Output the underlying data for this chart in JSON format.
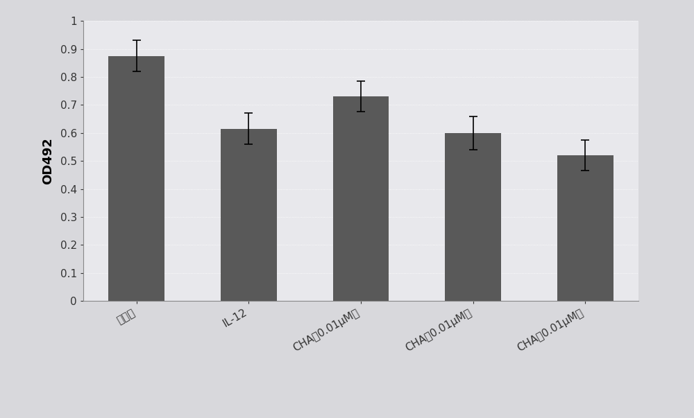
{
  "categories": [
    "对照组",
    "IL-12",
    "CHA（0.01μM）",
    "CHA（0.01μM）",
    "CHA（0.01μM）"
  ],
  "values": [
    0.875,
    0.615,
    0.73,
    0.6,
    0.52
  ],
  "errors": [
    0.055,
    0.055,
    0.055,
    0.06,
    0.055
  ],
  "bar_color": "#595959",
  "bar_width": 0.5,
  "ylabel": "OD492",
  "ylim": [
    0,
    1.0
  ],
  "yticks": [
    0,
    0.1,
    0.2,
    0.3,
    0.4,
    0.5,
    0.6,
    0.7,
    0.8,
    0.9,
    1
  ],
  "plot_bg_color": "#e8e8ec",
  "figure_bg_color": "#d8d8dc",
  "ylabel_fontsize": 13,
  "tick_fontsize": 11,
  "xlabel_rotation": 30,
  "error_capsize": 4,
  "error_color": "black",
  "error_linewidth": 1.2,
  "grid_color": "#ffffff",
  "grid_linewidth": 0.6,
  "spine_color": "#888888"
}
